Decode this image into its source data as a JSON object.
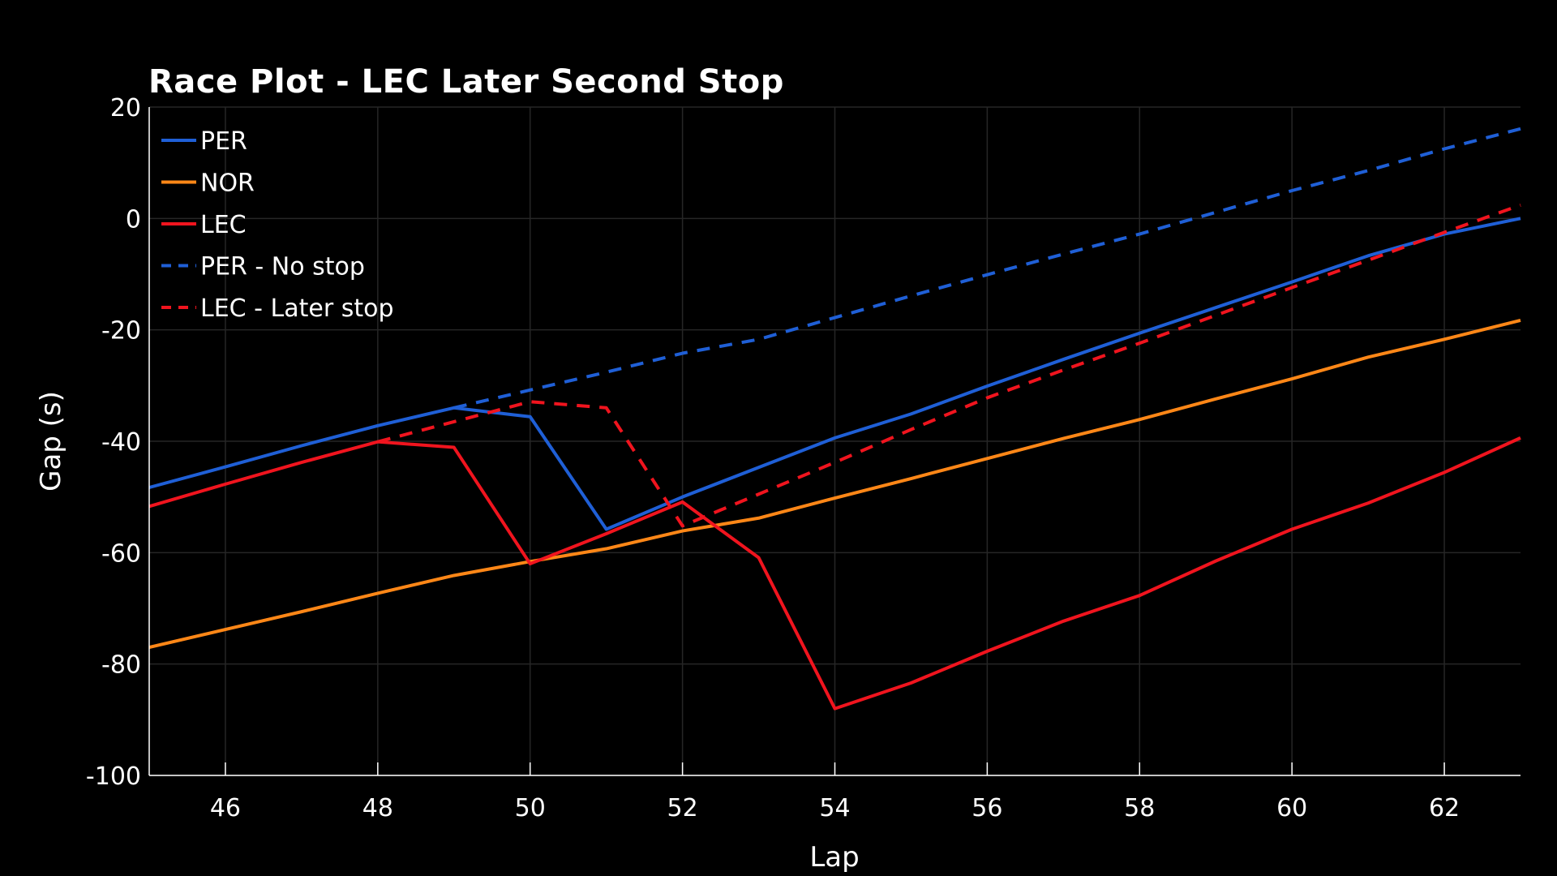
{
  "chart_data": {
    "type": "line",
    "title": "Race Plot - LEC Later Second Stop",
    "xlabel": "Lap",
    "ylabel": "Gap (s)",
    "xlim": [
      45,
      63
    ],
    "ylim": [
      -100,
      20
    ],
    "xticks": [
      46,
      48,
      50,
      52,
      54,
      56,
      58,
      60,
      62
    ],
    "yticks": [
      20,
      0,
      -20,
      -40,
      -60,
      -80,
      -100
    ],
    "grid": true,
    "legend": "top-left",
    "background": "#000000",
    "series": [
      {
        "name": "PER",
        "color": "#1f5fd6",
        "dash": false,
        "x": [
          45,
          46,
          47,
          48,
          49,
          50,
          51,
          52,
          53,
          54,
          55,
          56,
          57,
          58,
          59,
          60,
          61,
          62,
          63
        ],
        "y": [
          -48.3,
          -44.6,
          -40.8,
          -37.2,
          -34.0,
          -35.6,
          -55.8,
          -50.0,
          -44.7,
          -39.4,
          -35.1,
          -30.1,
          -25.3,
          -20.6,
          -16.0,
          -11.4,
          -6.7,
          -2.8,
          0.0
        ]
      },
      {
        "name": "NOR",
        "color": "#ff8717",
        "dash": false,
        "x": [
          45,
          46,
          47,
          48,
          49,
          50,
          51,
          52,
          53,
          54,
          55,
          56,
          57,
          58,
          59,
          60,
          61,
          62,
          63
        ],
        "y": [
          -77.0,
          -73.8,
          -70.6,
          -67.3,
          -64.1,
          -61.6,
          -59.3,
          -56.1,
          -53.8,
          -50.2,
          -46.7,
          -43.1,
          -39.5,
          -36.1,
          -32.4,
          -28.8,
          -24.9,
          -21.7,
          -18.3
        ]
      },
      {
        "name": "LEC",
        "color": "#f0141e",
        "dash": false,
        "x": [
          45,
          46,
          47,
          48,
          49,
          50,
          51,
          52,
          53,
          54,
          55,
          56,
          57,
          58,
          59,
          60,
          61,
          62,
          63
        ],
        "y": [
          -51.7,
          -47.7,
          -43.8,
          -40.1,
          -41.1,
          -62.0,
          -56.6,
          -50.9,
          -60.9,
          -88.0,
          -83.4,
          -77.7,
          -72.3,
          -67.7,
          -61.5,
          -55.8,
          -51.1,
          -45.6,
          -39.4
        ]
      },
      {
        "name": "PER - No stop",
        "color": "#1f5fd6",
        "dash": true,
        "x": [
          49,
          50,
          51,
          52,
          53,
          54,
          55,
          56,
          57,
          58,
          59,
          60,
          61,
          62,
          63
        ],
        "y": [
          -34.0,
          -30.8,
          -27.6,
          -24.2,
          -21.7,
          -17.8,
          -13.9,
          -10.1,
          -6.4,
          -2.8,
          1.1,
          5.0,
          8.6,
          12.5,
          16.1
        ]
      },
      {
        "name": "LEC - Later stop",
        "color": "#f0141e",
        "dash": true,
        "x": [
          48,
          49,
          50,
          51,
          52,
          53,
          54,
          55,
          56,
          57,
          58,
          59,
          60,
          61,
          62,
          63
        ],
        "y": [
          -40.1,
          -36.5,
          -32.9,
          -34.0,
          -55.2,
          -49.5,
          -43.8,
          -37.9,
          -32.2,
          -27.2,
          -22.4,
          -17.4,
          -12.4,
          -7.5,
          -2.5,
          2.4
        ]
      }
    ]
  }
}
